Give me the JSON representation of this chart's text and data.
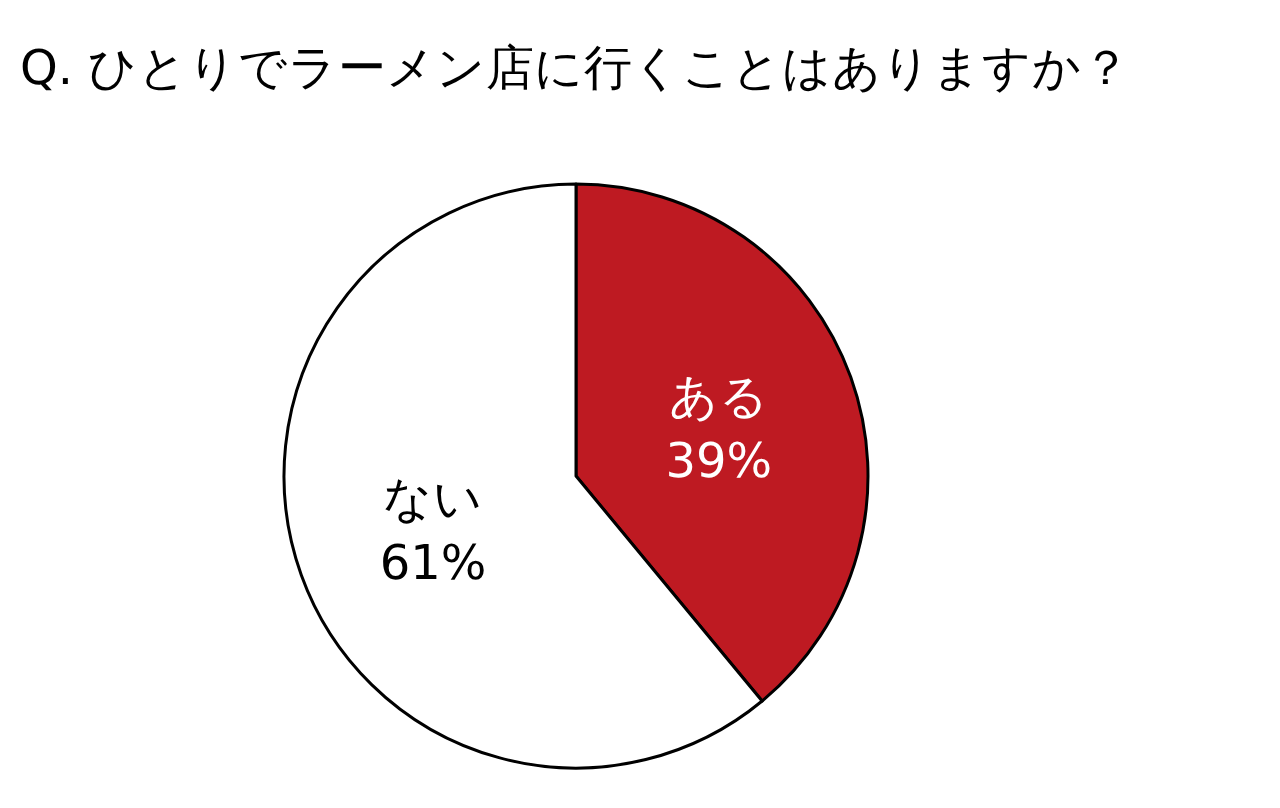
{
  "chart_data": {
    "type": "pie",
    "title": "Q. ひとりでラーメン店に行くことはありますか？",
    "categories": [
      "ある",
      "ない"
    ],
    "values": [
      39,
      61
    ],
    "colors": [
      "#be1a22",
      "#ffffff"
    ],
    "value_labels": [
      "39%",
      "61%"
    ]
  }
}
